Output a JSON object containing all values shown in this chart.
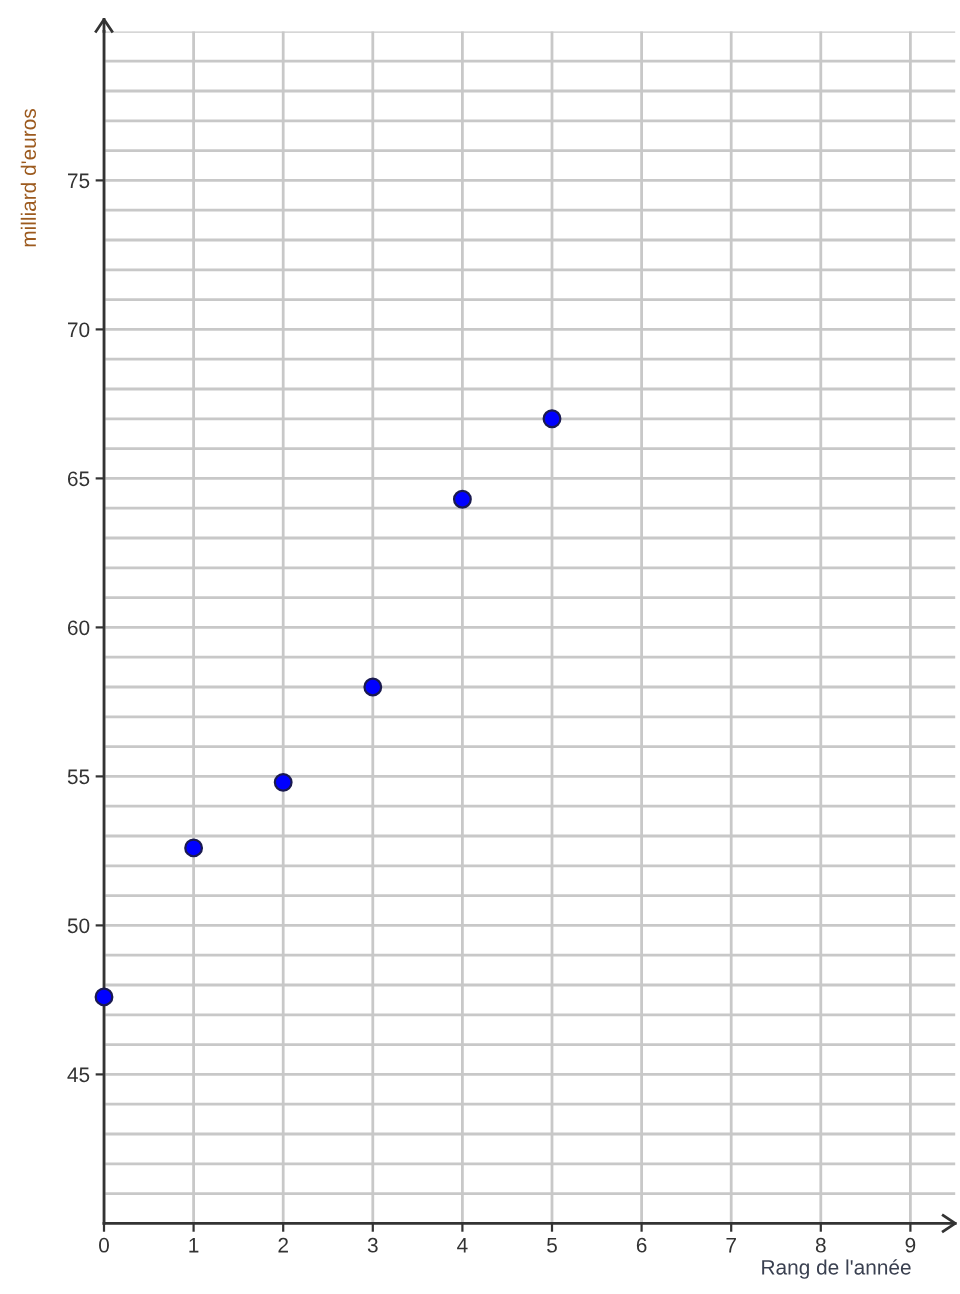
{
  "chart_data": {
    "type": "scatter",
    "xlabel": "Rang de l'année",
    "ylabel": "milliard d'euros",
    "x": [
      0,
      1,
      2,
      3,
      4,
      5
    ],
    "values": [
      47.6,
      52.6,
      54.8,
      58.0,
      64.3,
      67.0
    ],
    "color": "#0000ff",
    "marker": "circle",
    "xlim": [
      0,
      9.5
    ],
    "ylim": [
      40,
      80
    ],
    "xticks": [
      0,
      1,
      2,
      3,
      4,
      5,
      6,
      7,
      8,
      9
    ],
    "yticks": [
      {
        "value": 41,
        "label": null
      },
      {
        "value": 42,
        "label": null
      },
      {
        "value": 43,
        "label": null
      },
      {
        "value": 44,
        "label": null
      },
      45,
      {
        "value": 46,
        "label": null
      },
      {
        "value": 47,
        "label": null
      },
      {
        "value": 48,
        "label": null
      },
      {
        "value": 49,
        "label": null
      },
      50,
      {
        "value": 51,
        "label": null
      },
      {
        "value": 52,
        "label": null
      },
      {
        "value": 53,
        "label": null
      },
      {
        "value": 54,
        "label": null
      },
      55,
      {
        "value": 56,
        "label": null
      },
      {
        "value": 57,
        "label": null
      },
      {
        "value": 58,
        "label": null
      },
      {
        "value": 59,
        "label": null
      },
      60,
      {
        "value": 61,
        "label": null
      },
      {
        "value": 62,
        "label": null
      },
      {
        "value": 63,
        "label": null
      },
      {
        "value": 64,
        "label": null
      },
      65,
      {
        "value": 66,
        "label": null
      },
      {
        "value": 67,
        "label": null
      },
      {
        "value": 68,
        "label": null
      },
      {
        "value": 69,
        "label": null
      },
      70,
      {
        "value": 71,
        "label": null
      },
      {
        "value": 72,
        "label": null
      },
      {
        "value": 73,
        "label": null
      },
      {
        "value": 74,
        "label": null
      },
      75,
      {
        "value": 76,
        "label": null
      },
      {
        "value": 77,
        "label": null
      },
      {
        "value": 78,
        "label": null
      },
      {
        "value": 79,
        "label": null
      },
      {
        "value": 80,
        "label": null
      }
    ],
    "grid": true
  }
}
